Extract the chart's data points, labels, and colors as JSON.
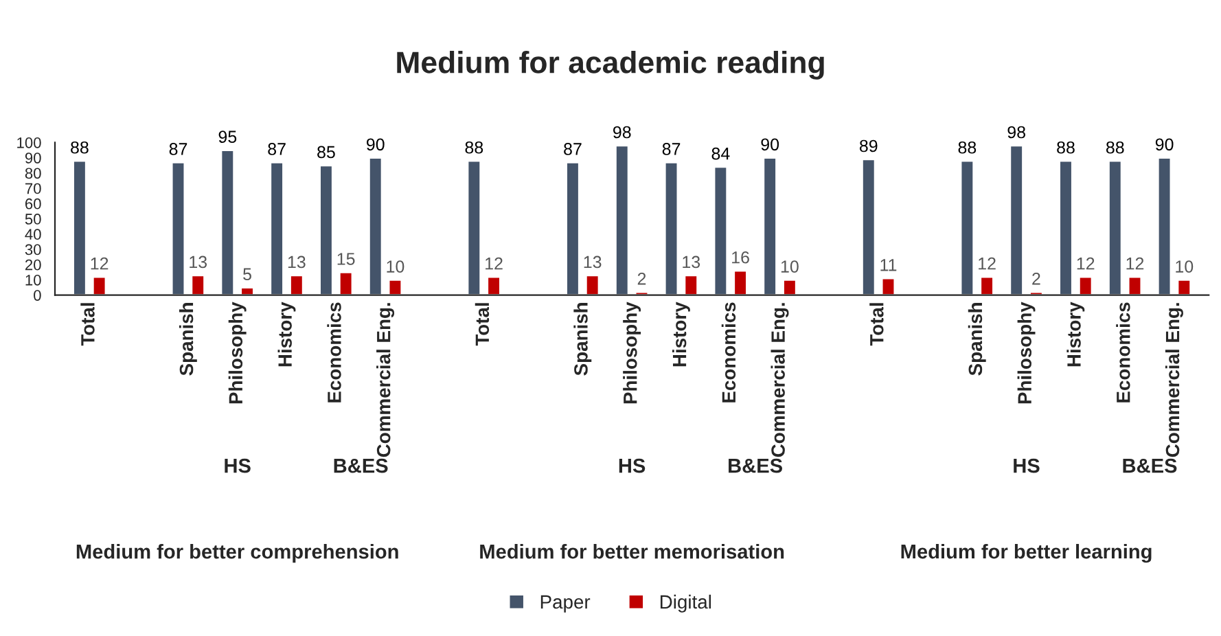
{
  "chart_data": {
    "type": "bar",
    "title": "Medium for academic reading",
    "categories": [
      "Total",
      null,
      "Spanish",
      "Philosophy",
      "History",
      "Economics",
      "Commercial Eng.",
      null,
      "Total",
      null,
      "Spanish",
      "Philosophy",
      "History",
      "Economics",
      "Commercial Eng.",
      null,
      "Total",
      null,
      "Spanish",
      "Philosophy",
      "History",
      "Economics",
      "Commercial Eng."
    ],
    "series": [
      {
        "name": "Paper",
        "color": "#44546a",
        "values": [
          88,
          null,
          87,
          95,
          87,
          85,
          90,
          null,
          88,
          null,
          87,
          98,
          87,
          84,
          90,
          null,
          89,
          null,
          88,
          98,
          88,
          88,
          90
        ]
      },
      {
        "name": "Digital",
        "color": "#c00000",
        "values": [
          12,
          null,
          13,
          5,
          13,
          15,
          10,
          null,
          12,
          null,
          13,
          2,
          13,
          16,
          10,
          null,
          11,
          null,
          12,
          2,
          12,
          12,
          10
        ]
      }
    ],
    "ylim": [
      0,
      100
    ],
    "yticks": [
      0,
      10,
      20,
      30,
      40,
      50,
      60,
      70,
      80,
      90,
      100
    ],
    "data_labels": true,
    "grid": false,
    "legend": "bottom",
    "annotations": [
      "HS",
      "B&ES",
      "Medium for better comprehension",
      "HS",
      "B&ES",
      "Medium for better memorisation",
      "HS",
      "B&ES",
      "Medium for better learning"
    ]
  }
}
